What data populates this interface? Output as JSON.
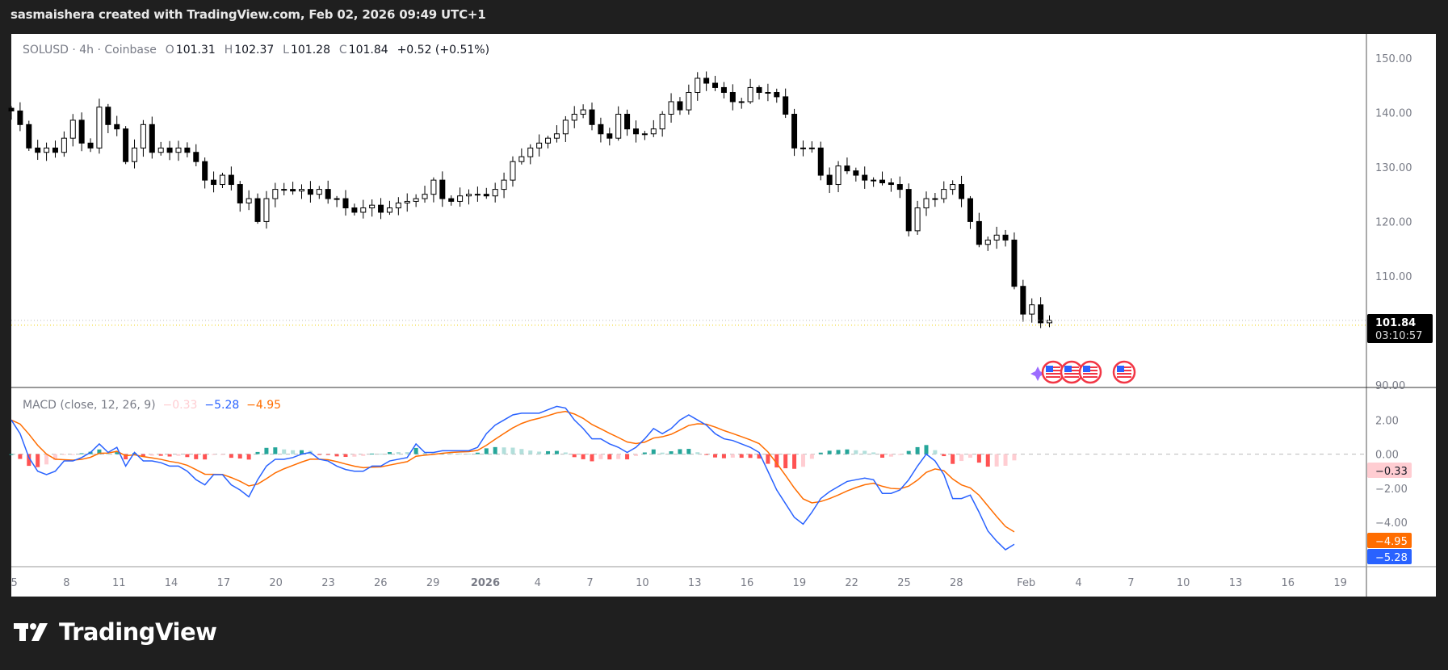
{
  "header": {
    "caption": "sasmaishera created with TradingView.com, Feb 02, 2026 09:49 UTC+1"
  },
  "legend": {
    "symbol": "SOLUSD · 4h · Coinbase",
    "o_label": "O",
    "o": "101.31",
    "h_label": "H",
    "h": "102.37",
    "l_label": "L",
    "l": "101.28",
    "c_label": "C",
    "c": "101.84",
    "change": "+0.52 (+0.51%)"
  },
  "macd_legend": {
    "title": "MACD (close, 12, 26, 9)",
    "histogram": "−0.33",
    "macd": "−5.28",
    "signal": "−4.95"
  },
  "price_label": {
    "price": "101.84",
    "countdown": "03:10:57"
  },
  "macd_labels": {
    "histogram": "−0.33",
    "signal": "−4.95",
    "macd": "−5.28"
  },
  "footer": {
    "logo_text": "TradingView",
    "logo_mark": "TV"
  },
  "colors": {
    "up": "#ffffff",
    "down": "#000000",
    "macd": "#2962ff",
    "signal": "#ff6d00",
    "hist_up": "#26a69a",
    "hist_up_weak": "#b2dfdb",
    "hist_down": "#ff5252",
    "hist_down_weak": "#ffcdd2",
    "price_label_bg": "#000000"
  },
  "events": [
    {
      "icon": "us-flag-icon"
    },
    {
      "icon": "us-flag-icon"
    },
    {
      "icon": "us-flag-icon"
    },
    {
      "icon": "us-flag-icon"
    }
  ],
  "chart_data": [
    {
      "type": "candlestick",
      "symbol": "SOLUSD",
      "x_start": "2025-12-04 20:00",
      "x_end": "2026-02-02 08:00",
      "x_range": [
        "2025-12-04 20:00",
        "2026-02-20 12:00"
      ],
      "ylim": [
        89.5,
        152.5
      ],
      "y_ticks": [
        "150.00",
        "140.00",
        "130.00",
        "120.00",
        "110.00",
        "90.00"
      ],
      "x_ticks": [
        "5",
        "8",
        "11",
        "14",
        "17",
        "20",
        "23",
        "26",
        "29",
        "2026",
        "4",
        "7",
        "10",
        "13",
        "16",
        "19",
        "22",
        "25",
        "28",
        "Feb",
        "4",
        "7",
        "10",
        "13",
        "16",
        "19"
      ],
      "last_close": 101.84,
      "closes": [
        140.3,
        137.8,
        133.5,
        132.7,
        133.5,
        132.7,
        135.3,
        138.6,
        134.4,
        133.5,
        141,
        137.8,
        137,
        131,
        133.5,
        137.8,
        132.7,
        133.5,
        132.7,
        133.5,
        132.7,
        131,
        127.6,
        126.8,
        128.5,
        126.8,
        123.4,
        124.2,
        120,
        124.2,
        125.9,
        125.9,
        125.6,
        125.9,
        125,
        125.9,
        124.2,
        124.2,
        122.5,
        121.7,
        122.5,
        123,
        121.7,
        122.5,
        123.4,
        123.7,
        124.2,
        125,
        127.6,
        124.2,
        123.7,
        124.7,
        125,
        125,
        124.7,
        125.9,
        127.6,
        131,
        131.9,
        133.5,
        134.4,
        135.3,
        136.1,
        138.6,
        139.7,
        140.5,
        137.8,
        136.1,
        135.3,
        139.7,
        137,
        136.1,
        136.1,
        137,
        139.7,
        142,
        140.5,
        143.7,
        146.3,
        145.4,
        144.6,
        143.7,
        142,
        142,
        144.6,
        143.7,
        143.7,
        142.9,
        139.7,
        133.5,
        133.5,
        133.5,
        128.5,
        126.8,
        130.2,
        129.3,
        128.5,
        127.6,
        127.6,
        127.1,
        126.8,
        125.9,
        118.3,
        122.5,
        124.2,
        124.2,
        125.9,
        126.8,
        124.2,
        120,
        115.8,
        116.6,
        117.5,
        116.6,
        108.1,
        103,
        104.7,
        101.4,
        101.84
      ],
      "grid": false
    },
    {
      "type": "line",
      "title": "MACD (close, 12, 26, 9)",
      "x_start": "2025-12-04 20:00",
      "x_end": "2026-02-02 08:00",
      "ylim": [
        -6.5,
        3.5
      ],
      "y_ticks": [
        "2.00",
        "0.00",
        "−2.00",
        "−4.00"
      ],
      "series": [
        {
          "name": "MACD",
          "values": [
            2.0,
            1.2,
            -0.2,
            -1.0,
            -1.2,
            -1.0,
            -0.4,
            -0.4,
            -0.2,
            0.1,
            0.6,
            0.1,
            0.4,
            -0.7,
            0.1,
            -0.4,
            -0.4,
            -0.5,
            -0.7,
            -0.7,
            -1.0,
            -1.5,
            -1.8,
            -1.2,
            -1.2,
            -1.8,
            -2.1,
            -2.5,
            -1.5,
            -0.7,
            -0.3,
            -0.3,
            -0.2,
            0,
            0.1,
            -0.3,
            -0.4,
            -0.7,
            -0.9,
            -1.0,
            -1.0,
            -0.7,
            -0.7,
            -0.4,
            -0.3,
            -0.2,
            0.6,
            0.1,
            0.1,
            0.2,
            0.2,
            0.2,
            0.2,
            0.4,
            1.2,
            1.7,
            2.0,
            2.3,
            2.4,
            2.4,
            2.4,
            2.6,
            2.8,
            2.7,
            2.0,
            1.5,
            0.9,
            0.9,
            0.6,
            0.4,
            0.1,
            0.4,
            0.9,
            1.5,
            1.2,
            1.5,
            2.0,
            2.3,
            2.0,
            1.7,
            1.2,
            0.9,
            0.8,
            0.6,
            0.4,
            0.1,
            -1.0,
            -2.1,
            -2.9,
            -3.7,
            -4.1,
            -3.4,
            -2.6,
            -2.2,
            -1.9,
            -1.6,
            -1.5,
            -1.4,
            -1.5,
            -2.3,
            -2.3,
            -2.1,
            -1.5,
            -0.7,
            0,
            -0.4,
            -1.2,
            -2.6,
            -2.6,
            -2.4,
            -3.4,
            -4.5,
            -5.1,
            -5.6,
            -5.28
          ]
        },
        {
          "name": "Signal",
          "last": -4.95
        },
        {
          "name": "Histogram",
          "last": -0.33
        }
      ]
    }
  ]
}
